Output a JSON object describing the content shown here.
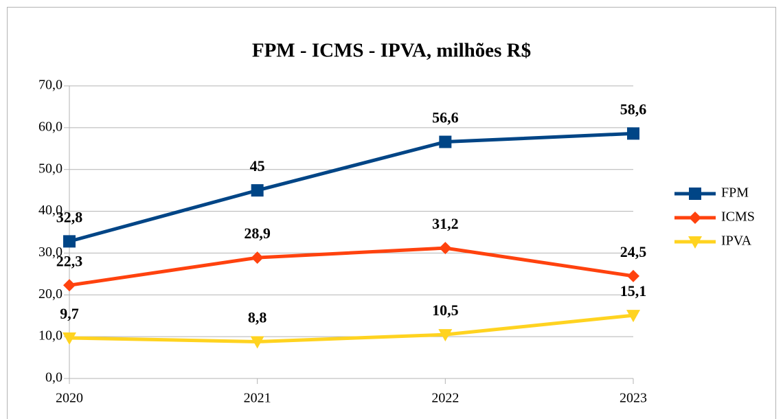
{
  "chart_data": {
    "type": "line",
    "title": "FPM - ICMS - IPVA, milhões R$",
    "categories": [
      "2020",
      "2021",
      "2022",
      "2023"
    ],
    "series": [
      {
        "name": "FPM",
        "color": "#004586",
        "marker": "square",
        "values": [
          32.8,
          45,
          56.6,
          58.6
        ],
        "value_labels": [
          "32,8",
          "45",
          "56,6",
          "58,6"
        ]
      },
      {
        "name": "ICMS",
        "color": "#ff420e",
        "marker": "diamond",
        "values": [
          22.3,
          28.9,
          31.2,
          24.5
        ],
        "value_labels": [
          "22,3",
          "28,9",
          "31,2",
          "24,5"
        ]
      },
      {
        "name": "IPVA",
        "color": "#ffd320",
        "marker": "triangle-down",
        "values": [
          9.7,
          8.8,
          10.5,
          15.1
        ],
        "value_labels": [
          "9,7",
          "8,8",
          "10,5",
          "15,1"
        ]
      }
    ],
    "ylim": [
      0,
      70
    ],
    "yticks": [
      {
        "value": 0,
        "label": "0,0"
      },
      {
        "value": 10,
        "label": "10,0"
      },
      {
        "value": 20,
        "label": "20,0"
      },
      {
        "value": 30,
        "label": "30,0"
      },
      {
        "value": 40,
        "label": "40,0"
      },
      {
        "value": 50,
        "label": "50,0"
      },
      {
        "value": 60,
        "label": "60,0"
      },
      {
        "value": 70,
        "label": "70,0"
      }
    ],
    "grid": true,
    "legend": "right"
  }
}
